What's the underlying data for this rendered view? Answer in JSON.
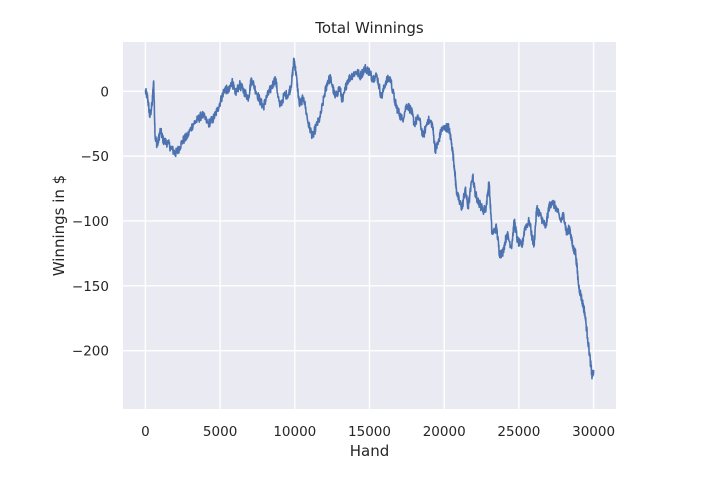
{
  "chart_data": {
    "type": "line",
    "title": "Total Winnings",
    "xlabel": "Hand",
    "ylabel": "Winnings in $",
    "xlim": [
      -1500,
      31500
    ],
    "ylim": [
      -245,
      38
    ],
    "xticks": [
      0,
      5000,
      10000,
      15000,
      20000,
      25000,
      30000
    ],
    "xtick_labels": [
      "0",
      "5000",
      "10000",
      "15000",
      "20000",
      "25000",
      "30000"
    ],
    "yticks": [
      -200,
      -150,
      -100,
      -50,
      0
    ],
    "ytick_labels": [
      "−200",
      "−150",
      "−100",
      "−50",
      "0"
    ],
    "grid": true,
    "colors": {
      "background": "#eaeaf2",
      "grid": "#ffffff",
      "line": "#4c72b0"
    },
    "series": [
      {
        "x": [
          0,
          150,
          300,
          450,
          550,
          650,
          800,
          1000,
          1200,
          1500,
          1800,
          2000,
          2200,
          2500,
          2800,
          3200,
          3500,
          3800,
          4200,
          4500,
          4800,
          5100,
          5300,
          5600,
          5800,
          6000,
          6300,
          6600,
          6900,
          7100,
          7400,
          7700,
          7900,
          8100,
          8400,
          8700,
          9000,
          9300,
          9600,
          9800,
          9950,
          10100,
          10300,
          10600,
          10900,
          11200,
          11400,
          11700,
          12000,
          12200,
          12400,
          12700,
          13000,
          13200,
          13500,
          13800,
          14100,
          14400,
          14700,
          15000,
          15200,
          15500,
          15800,
          16100,
          16400,
          16700,
          16900,
          17200,
          17500,
          17800,
          18000,
          18300,
          18600,
          18900,
          19200,
          19400,
          19600,
          19800,
          20100,
          20300,
          20500,
          20700,
          20800,
          21000,
          21200,
          21400,
          21600,
          21900,
          22100,
          22300,
          22600,
          22800,
          23000,
          23200,
          23500,
          23700,
          23900,
          24200,
          24500,
          24700,
          24900,
          25200,
          25400,
          25700,
          26000,
          26200,
          26400,
          26600,
          26800,
          27000,
          27200,
          27500,
          27800,
          28000,
          28200,
          28400,
          28600,
          28800,
          29000,
          29200,
          29400,
          29600,
          29800,
          29900,
          30000
        ],
        "y": [
          0,
          -5,
          -20,
          -10,
          8,
          -35,
          -42,
          -30,
          -38,
          -40,
          -45,
          -48,
          -45,
          -38,
          -35,
          -25,
          -22,
          -18,
          -25,
          -22,
          -15,
          -5,
          2,
          0,
          8,
          -2,
          5,
          0,
          -5,
          10,
          0,
          -8,
          -12,
          -5,
          2,
          10,
          -12,
          -3,
          -2,
          8,
          25,
          12,
          -10,
          -5,
          -25,
          -35,
          -28,
          -20,
          -2,
          8,
          10,
          -5,
          3,
          -8,
          8,
          12,
          15,
          12,
          18,
          15,
          10,
          12,
          -5,
          8,
          10,
          -8,
          -15,
          -22,
          -10,
          -15,
          -25,
          -20,
          -35,
          -22,
          -25,
          -45,
          -40,
          -30,
          -28,
          -28,
          -40,
          -60,
          -75,
          -85,
          -90,
          -75,
          -90,
          -65,
          -80,
          -85,
          -92,
          -90,
          -70,
          -110,
          -105,
          -125,
          -125,
          -110,
          -120,
          -100,
          -115,
          -120,
          -105,
          -100,
          -120,
          -90,
          -95,
          -100,
          -105,
          -90,
          -85,
          -90,
          -100,
          -95,
          -110,
          -105,
          -120,
          -125,
          -150,
          -160,
          -170,
          -190,
          -210,
          -220,
          -215
        ]
      }
    ]
  }
}
